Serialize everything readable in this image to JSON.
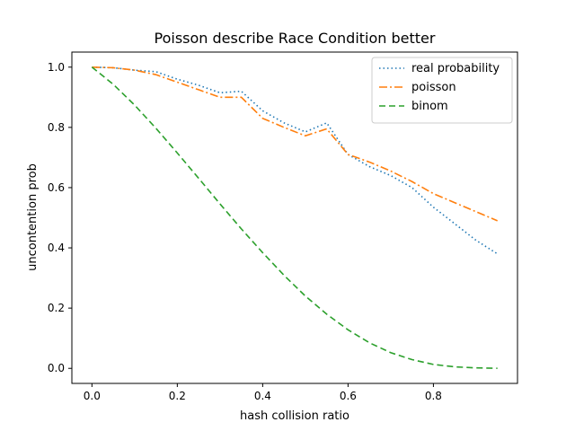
{
  "chart_data": {
    "type": "line",
    "title": "Poisson describe Race Condition better",
    "xlabel": "hash collision ratio",
    "ylabel": "uncontention prob",
    "xlim": [
      -0.047,
      0.997
    ],
    "ylim": [
      -0.05,
      1.05
    ],
    "xticks": [
      0.0,
      0.2,
      0.4,
      0.6,
      0.8
    ],
    "xtick_labels": [
      "0.0",
      "0.2",
      "0.4",
      "0.6",
      "0.8"
    ],
    "yticks": [
      0.0,
      0.2,
      0.4,
      0.6,
      0.8,
      1.0
    ],
    "ytick_labels": [
      "0.0",
      "0.2",
      "0.4",
      "0.6",
      "0.8",
      "1.0"
    ],
    "grid": false,
    "legend_position": "top-right",
    "series": [
      {
        "name": "real probability",
        "color": "#1f77b4",
        "style": "dotted",
        "x": [
          0.0,
          0.05,
          0.1,
          0.15,
          0.2,
          0.25,
          0.3,
          0.35,
          0.4,
          0.45,
          0.5,
          0.55,
          0.6,
          0.65,
          0.7,
          0.75,
          0.8,
          0.85,
          0.9,
          0.95
        ],
        "y": [
          1.0,
          0.998,
          0.99,
          0.985,
          0.96,
          0.94,
          0.915,
          0.92,
          0.855,
          0.815,
          0.785,
          0.815,
          0.71,
          0.67,
          0.64,
          0.6,
          0.535,
          0.48,
          0.425,
          0.38
        ]
      },
      {
        "name": "poisson",
        "color": "#ff7f0e",
        "style": "dashdot",
        "x": [
          0.0,
          0.05,
          0.1,
          0.15,
          0.2,
          0.25,
          0.3,
          0.35,
          0.4,
          0.45,
          0.5,
          0.55,
          0.6,
          0.65,
          0.7,
          0.75,
          0.8,
          0.85,
          0.9,
          0.95
        ],
        "y": [
          1.0,
          0.998,
          0.99,
          0.975,
          0.95,
          0.925,
          0.9,
          0.9,
          0.83,
          0.8,
          0.772,
          0.795,
          0.71,
          0.685,
          0.655,
          0.62,
          0.58,
          0.55,
          0.52,
          0.49
        ]
      },
      {
        "name": "binom",
        "color": "#2ca02c",
        "style": "dashed",
        "x": [
          0.0,
          0.05,
          0.1,
          0.15,
          0.2,
          0.25,
          0.3,
          0.35,
          0.4,
          0.45,
          0.5,
          0.55,
          0.6,
          0.65,
          0.7,
          0.75,
          0.8,
          0.85,
          0.9,
          0.95
        ],
        "y": [
          1.0,
          0.943,
          0.874,
          0.797,
          0.715,
          0.631,
          0.546,
          0.463,
          0.384,
          0.309,
          0.24,
          0.18,
          0.128,
          0.085,
          0.052,
          0.029,
          0.013,
          0.005,
          0.0015,
          0.0002
        ]
      }
    ]
  }
}
